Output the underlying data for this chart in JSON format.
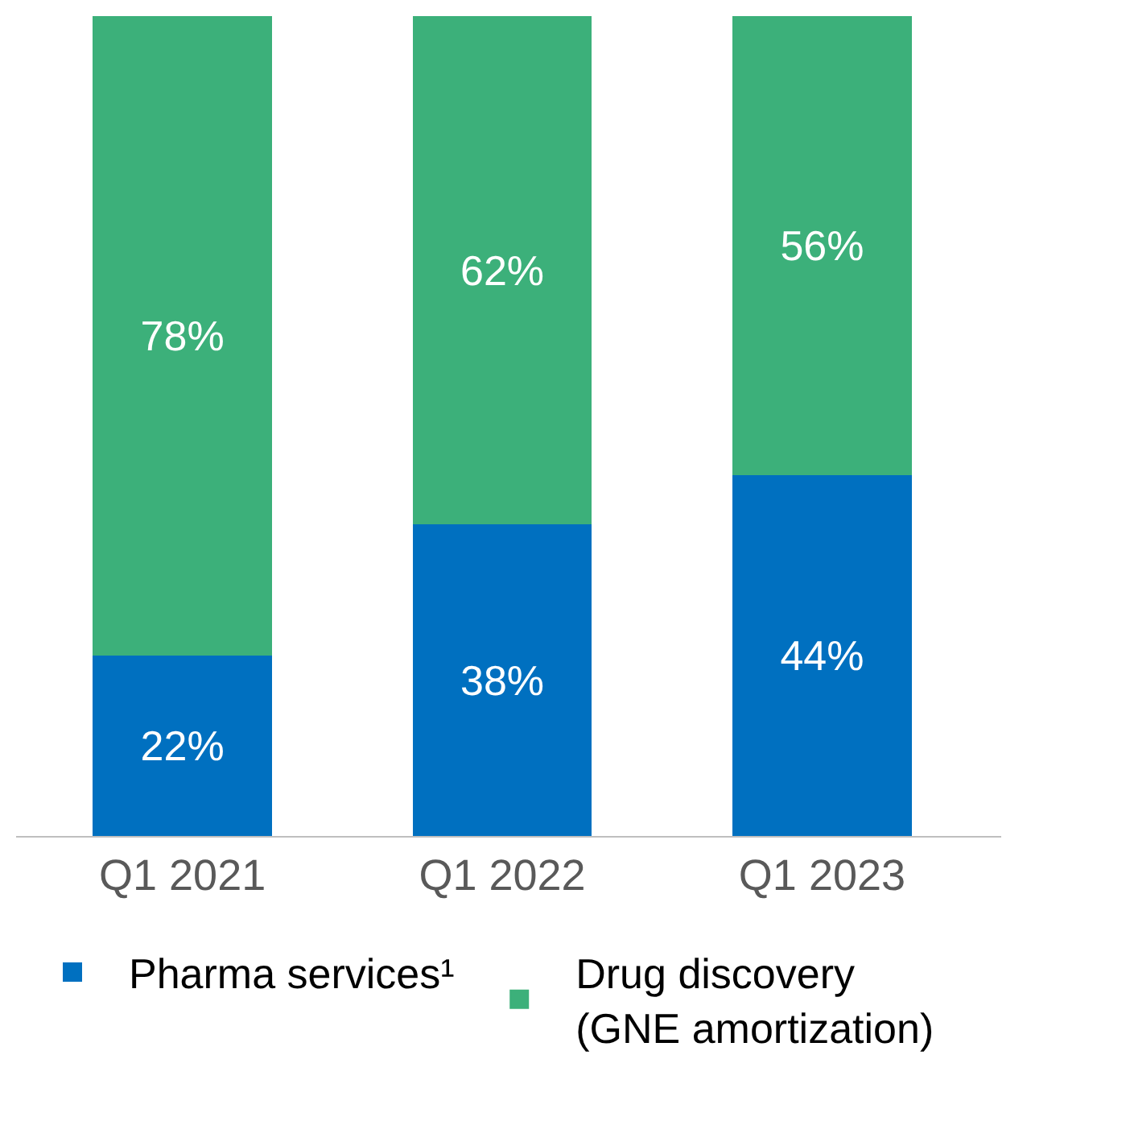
{
  "chart_data": {
    "type": "bar",
    "stacked": true,
    "legend": "bottom",
    "categories": [
      "Q1 2021",
      "Q1 2022",
      "Q1 2023"
    ],
    "series": [
      {
        "name": "Pharma services¹",
        "color": "#0070c0",
        "values": [
          22,
          38,
          44
        ],
        "value_labels": [
          "22%",
          "38%",
          "44%"
        ]
      },
      {
        "name": "Drug discovery\n(GNE amortization)",
        "color": "#3cb07a",
        "values": [
          78,
          62,
          56
        ],
        "value_labels": [
          "78%",
          "62%",
          "56%"
        ]
      }
    ]
  }
}
